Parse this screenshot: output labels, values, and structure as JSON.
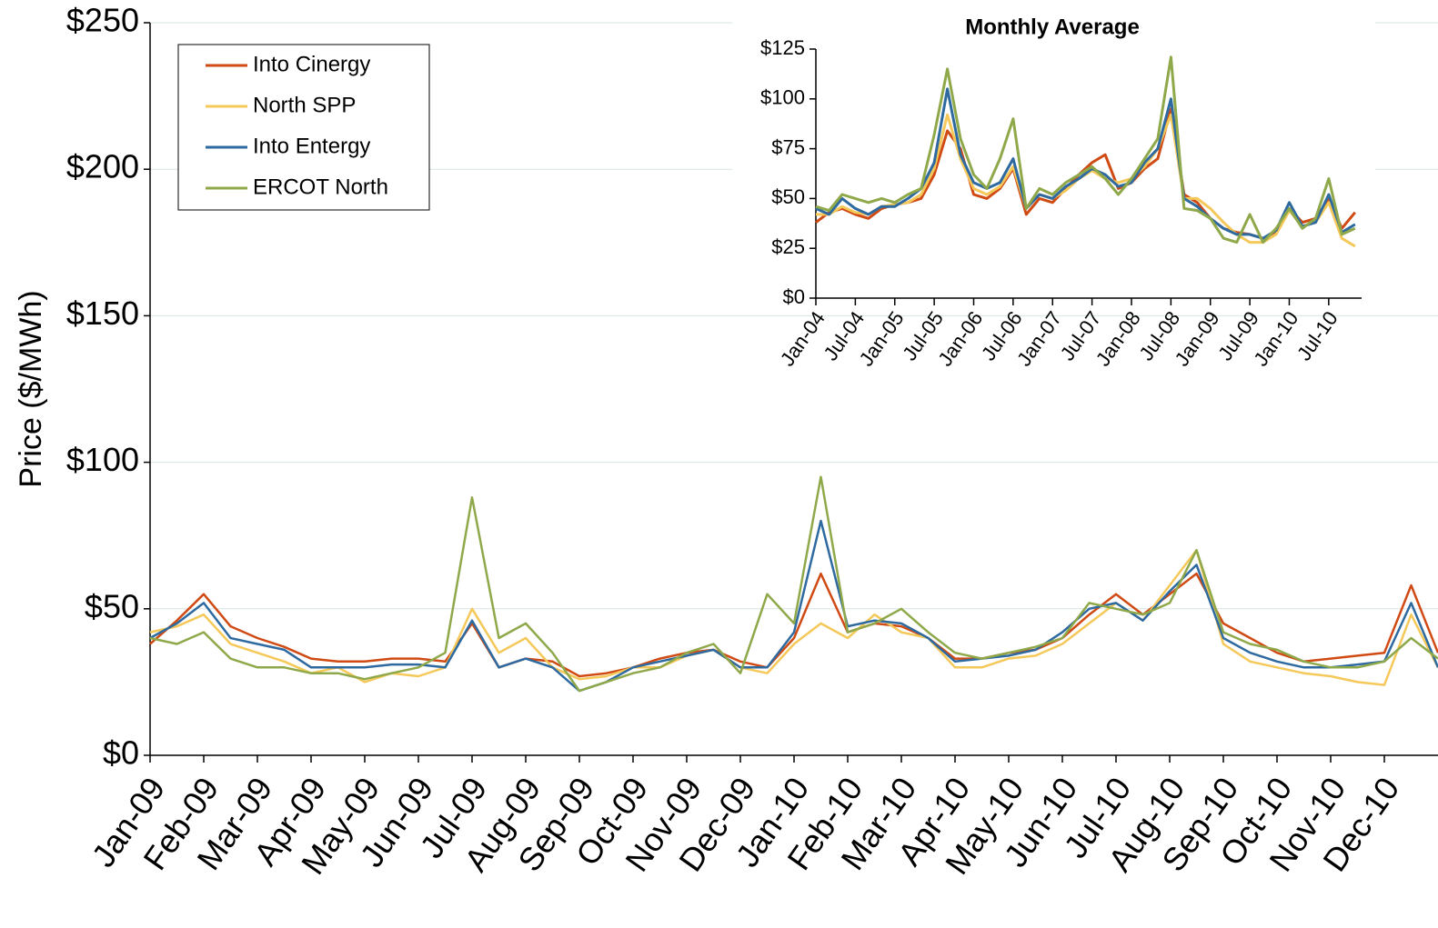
{
  "chart_data": [
    {
      "type": "line",
      "y_label": "Price ($/MWh)",
      "x": [
        0,
        0.5,
        1,
        1.5,
        2,
        2.5,
        3,
        3.5,
        4,
        4.5,
        5,
        5.5,
        6,
        6.5,
        7,
        7.5,
        8,
        8.5,
        9,
        9.5,
        10,
        10.5,
        11,
        11.5,
        12,
        12.5,
        13,
        13.5,
        14,
        14.5,
        15,
        15.5,
        16,
        16.5,
        17,
        17.5,
        18,
        18.5,
        19,
        19.5,
        20,
        20.5,
        21,
        21.5,
        22,
        22.5,
        23,
        23.5,
        24
      ],
      "xlim": [
        0,
        24
      ],
      "xticks": [
        {
          "value": 0,
          "label": "Jan-09"
        },
        {
          "value": 1,
          "label": "Feb-09"
        },
        {
          "value": 2,
          "label": "Mar-09"
        },
        {
          "value": 3,
          "label": "Apr-09"
        },
        {
          "value": 4,
          "label": "May-09"
        },
        {
          "value": 5,
          "label": "Jun-09"
        },
        {
          "value": 6,
          "label": "Jul-09"
        },
        {
          "value": 7,
          "label": "Aug-09"
        },
        {
          "value": 8,
          "label": "Sep-09"
        },
        {
          "value": 9,
          "label": "Oct-09"
        },
        {
          "value": 10,
          "label": "Nov-09"
        },
        {
          "value": 11,
          "label": "Dec-09"
        },
        {
          "value": 12,
          "label": "Jan-10"
        },
        {
          "value": 13,
          "label": "Feb-10"
        },
        {
          "value": 14,
          "label": "Mar-10"
        },
        {
          "value": 15,
          "label": "Apr-10"
        },
        {
          "value": 16,
          "label": "May-10"
        },
        {
          "value": 17,
          "label": "Jun-10"
        },
        {
          "value": 18,
          "label": "Jul-10"
        },
        {
          "value": 19,
          "label": "Aug-10"
        },
        {
          "value": 20,
          "label": "Sep-10"
        },
        {
          "value": 21,
          "label": "Oct-10"
        },
        {
          "value": 22,
          "label": "Nov-10"
        },
        {
          "value": 23,
          "label": "Dec-10"
        }
      ],
      "ylim": [
        0,
        250
      ],
      "yticks": [
        {
          "value": 0,
          "label": "$0"
        },
        {
          "value": 50,
          "label": "$50"
        },
        {
          "value": 100,
          "label": "$100"
        },
        {
          "value": 150,
          "label": "$150"
        },
        {
          "value": 200,
          "label": "$200"
        },
        {
          "value": 250,
          "label": "$250"
        }
      ],
      "grid": true,
      "legend": "top-left",
      "series": [
        {
          "name": "Into Cinergy",
          "color": "#d04a14",
          "values": [
            38,
            46,
            55,
            44,
            40,
            37,
            33,
            32,
            32,
            33,
            33,
            32,
            45,
            30,
            33,
            32,
            27,
            28,
            30,
            33,
            35,
            36,
            32,
            30,
            40,
            62,
            42,
            45,
            44,
            40,
            33,
            33,
            35,
            36,
            40,
            48,
            55,
            48,
            55,
            62,
            45,
            40,
            35,
            32,
            33,
            34,
            35,
            58,
            35
          ]
        },
        {
          "name": "North SPP",
          "color": "#f5c85a",
          "values": [
            42,
            44,
            48,
            38,
            35,
            32,
            28,
            30,
            25,
            28,
            27,
            30,
            50,
            35,
            40,
            30,
            26,
            27,
            30,
            30,
            34,
            36,
            30,
            28,
            38,
            45,
            40,
            48,
            42,
            40,
            30,
            30,
            33,
            34,
            38,
            45,
            52,
            46,
            58,
            70,
            38,
            32,
            30,
            28,
            27,
            25,
            24,
            48,
            30
          ]
        },
        {
          "name": "Into Entergy",
          "color": "#2e6aa0",
          "values": [
            40,
            45,
            52,
            40,
            38,
            36,
            30,
            30,
            30,
            31,
            31,
            30,
            46,
            30,
            33,
            30,
            22,
            25,
            30,
            32,
            34,
            36,
            30,
            30,
            42,
            80,
            44,
            46,
            45,
            40,
            32,
            33,
            34,
            36,
            42,
            50,
            52,
            46,
            56,
            65,
            40,
            35,
            32,
            30,
            30,
            31,
            32,
            52,
            30
          ]
        },
        {
          "name": "ERCOT North",
          "color": "#8fa84a",
          "values": [
            40,
            38,
            42,
            33,
            30,
            30,
            28,
            28,
            26,
            28,
            30,
            35,
            88,
            40,
            45,
            35,
            22,
            25,
            28,
            30,
            35,
            38,
            28,
            55,
            45,
            95,
            42,
            45,
            50,
            42,
            35,
            33,
            35,
            37,
            40,
            52,
            50,
            48,
            52,
            70,
            42,
            38,
            36,
            32,
            30,
            30,
            32,
            40,
            33
          ]
        }
      ]
    },
    {
      "type": "line",
      "title": "Monthly Average",
      "x": [
        0,
        2,
        4,
        6,
        8,
        10,
        12,
        14,
        16,
        18,
        20,
        22,
        24,
        26,
        28,
        30,
        32,
        34,
        36,
        38,
        40,
        42,
        44,
        46,
        48,
        50,
        52,
        54,
        56,
        58,
        60,
        62,
        64,
        66,
        68,
        70,
        72,
        74,
        76,
        78,
        80,
        82
      ],
      "xlim": [
        0,
        83
      ],
      "xticks": [
        {
          "value": 0,
          "label": "Jan-04"
        },
        {
          "value": 6,
          "label": "Jul-04"
        },
        {
          "value": 12,
          "label": "Jan-05"
        },
        {
          "value": 18,
          "label": "Jul-05"
        },
        {
          "value": 24,
          "label": "Jan-06"
        },
        {
          "value": 30,
          "label": "Jul-06"
        },
        {
          "value": 36,
          "label": "Jan-07"
        },
        {
          "value": 42,
          "label": "Jul-07"
        },
        {
          "value": 48,
          "label": "Jan-08"
        },
        {
          "value": 54,
          "label": "Jul-08"
        },
        {
          "value": 60,
          "label": "Jan-09"
        },
        {
          "value": 66,
          "label": "Jul-09"
        },
        {
          "value": 72,
          "label": "Jan-10"
        },
        {
          "value": 78,
          "label": "Jul-10"
        }
      ],
      "ylim": [
        0,
        125
      ],
      "yticks": [
        {
          "value": 0,
          "label": "$0"
        },
        {
          "value": 25,
          "label": "$25"
        },
        {
          "value": 50,
          "label": "$50"
        },
        {
          "value": 75,
          "label": "$75"
        },
        {
          "value": 100,
          "label": "$100"
        },
        {
          "value": 125,
          "label": "$125"
        }
      ],
      "grid": false,
      "series": [
        {
          "name": "Into Cinergy",
          "color": "#d04a14",
          "values": [
            38,
            43,
            45,
            42,
            40,
            45,
            47,
            48,
            50,
            62,
            84,
            75,
            52,
            50,
            55,
            65,
            42,
            50,
            48,
            55,
            62,
            68,
            72,
            55,
            58,
            65,
            70,
            95,
            52,
            48,
            40,
            35,
            33,
            32,
            30,
            33,
            45,
            38,
            40,
            50,
            35,
            43
          ]
        },
        {
          "name": "North SPP",
          "color": "#f5c85a",
          "values": [
            42,
            42,
            46,
            43,
            42,
            46,
            47,
            48,
            52,
            65,
            92,
            70,
            55,
            52,
            56,
            66,
            45,
            52,
            50,
            54,
            60,
            64,
            60,
            58,
            60,
            66,
            75,
            92,
            50,
            50,
            45,
            38,
            32,
            28,
            28,
            32,
            44,
            36,
            38,
            48,
            30,
            26
          ]
        },
        {
          "name": "Into Entergy",
          "color": "#2e6aa0",
          "values": [
            45,
            42,
            50,
            45,
            42,
            46,
            46,
            50,
            55,
            68,
            105,
            72,
            58,
            55,
            58,
            70,
            45,
            52,
            50,
            56,
            60,
            65,
            62,
            56,
            58,
            68,
            75,
            100,
            50,
            46,
            40,
            35,
            32,
            32,
            30,
            34,
            48,
            36,
            38,
            52,
            33,
            37
          ]
        },
        {
          "name": "ERCOT North",
          "color": "#8fa84a",
          "values": [
            46,
            44,
            52,
            50,
            48,
            50,
            48,
            52,
            55,
            82,
            115,
            80,
            62,
            55,
            70,
            90,
            45,
            55,
            52,
            58,
            62,
            66,
            60,
            52,
            60,
            70,
            80,
            121,
            45,
            44,
            40,
            30,
            28,
            42,
            28,
            35,
            45,
            35,
            40,
            60,
            32,
            35
          ]
        }
      ]
    }
  ]
}
